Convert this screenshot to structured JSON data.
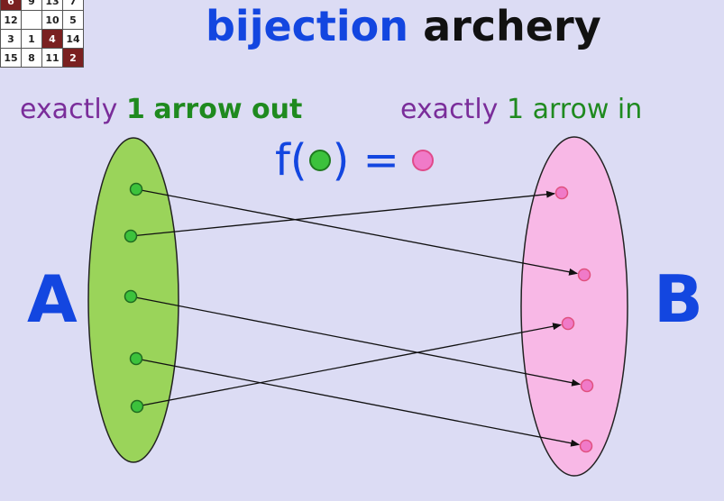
{
  "puzzle": {
    "rows": [
      [
        {
          "v": "6",
          "dark": true
        },
        {
          "v": "9"
        },
        {
          "v": "13"
        },
        {
          "v": "7"
        }
      ],
      [
        {
          "v": "12"
        },
        {
          "v": "",
          "blank": true
        },
        {
          "v": "10"
        },
        {
          "v": "5"
        }
      ],
      [
        {
          "v": "3"
        },
        {
          "v": "1"
        },
        {
          "v": "4",
          "dark": true
        },
        {
          "v": "14"
        }
      ],
      [
        {
          "v": "15"
        },
        {
          "v": "8"
        },
        {
          "v": "11"
        },
        {
          "v": "2",
          "dark": true
        }
      ]
    ]
  },
  "title": {
    "word1": "bijection",
    "word2": "archery"
  },
  "left_label": {
    "prefix": "exactly",
    "count": "1",
    "rest": "arrow out"
  },
  "right_label": {
    "prefix": "exactly",
    "count": "1",
    "rest": "arrow in"
  },
  "formula": {
    "f_open": "f(",
    "close_eq": ") ="
  },
  "sets": {
    "a": {
      "name": "A",
      "color": "#9ad45a",
      "point_color": "#3cc23c",
      "points": 5
    },
    "b": {
      "name": "B",
      "color": "#f8b8e6",
      "point_color": "#f07ac8",
      "points": 5
    }
  },
  "mapping": [
    [
      0,
      1
    ],
    [
      1,
      0
    ],
    [
      2,
      3
    ],
    [
      3,
      4
    ],
    [
      4,
      2
    ]
  ]
}
